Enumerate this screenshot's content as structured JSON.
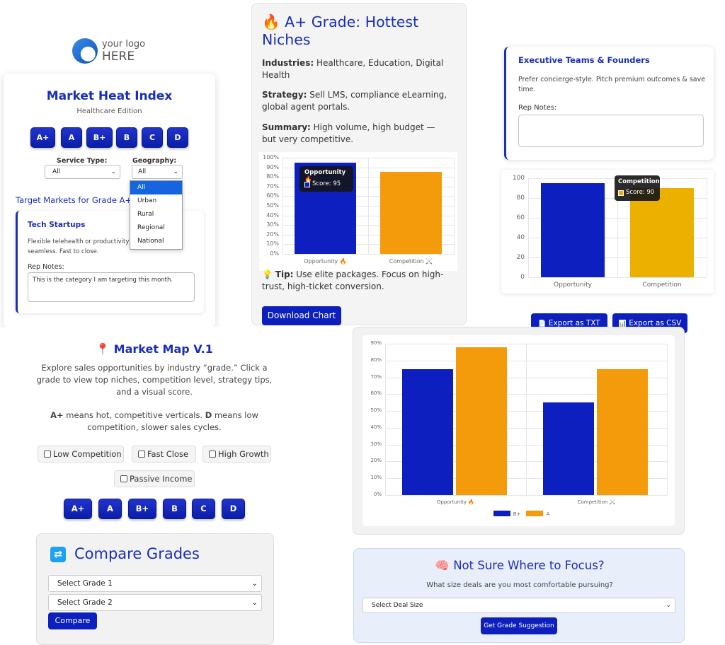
{
  "logo": {
    "line1": "your logo",
    "line2": "HERE"
  },
  "heat": {
    "title": "Market Heat Index",
    "subtitle": "Healthcare Edition",
    "grades": [
      "A+",
      "A",
      "B+",
      "B",
      "C",
      "D"
    ],
    "service_label": "Service Type:",
    "service_value": "All",
    "geo_label": "Geography:",
    "geo_value": "All",
    "geo_options": [
      "All",
      "Urban",
      "Rural",
      "Regional",
      "National"
    ],
    "target_heading": "Target Markets for Grade A+",
    "card_title": "Tech Startups",
    "card_desc": "Flexible telehealth or productivity tools. Low cost & seamless. Fast to close.",
    "rep_label": "Rep Notes:",
    "rep_value": "This is the category I am targeting this month."
  },
  "niche": {
    "icon": "🔥",
    "title": "A+ Grade: Hottest Niches",
    "industries_label": "Industries:",
    "industries_value": " Healthcare, Education, Digital Health",
    "strategy_label": "Strategy:",
    "strategy_value": " Sell LMS, compliance eLearning, global agent portals.",
    "summary_label": "Summary:",
    "summary_value": " High volume, high budget — but very competitive.",
    "tip_icon": "💡",
    "tip_label": "Tip:",
    "tip_value": " Use elite packages. Focus on high-trust, high-ticket conversion.",
    "download_label": "Download Chart",
    "tooltip_title": "Opportunity 🔥",
    "tooltip_value": "Score: 95"
  },
  "exec": {
    "title": "Executive Teams & Founders",
    "desc": "Prefer concierge-style. Pitch premium outcomes & save time.",
    "rep_label": "Rep Notes:",
    "rep_value": "",
    "tooltip_title": "Competition",
    "tooltip_value": "Score: 90",
    "export_txt": "Export as TXT",
    "export_csv": "Export as CSV",
    "export_txt_icon": "📄",
    "export_csv_icon": "📊"
  },
  "map": {
    "pin_icon": "📍",
    "title": "Market Map V.1",
    "desc": "Explore sales opportunities by industry “grade.” Click a grade to view top niches, competition level, strategy tips, and a visual score.",
    "legend_aplus": "A+",
    "legend_aplus_text": " means hot, competitive verticals. ",
    "legend_d": "D",
    "legend_d_text": " means low competition, slower sales cycles.",
    "filters": [
      "Low Competition",
      "Fast Close",
      "High Growth",
      "Passive Income"
    ],
    "grades": [
      "A+",
      "A",
      "B+",
      "B",
      "C",
      "D"
    ]
  },
  "compare": {
    "icon": "🔁",
    "title": "Compare Grades",
    "select1": "Select Grade 1",
    "select2": "Select Grade 2",
    "button": "Compare"
  },
  "focus": {
    "icon": "🧠",
    "title": "Not Sure Where to Focus?",
    "question": "What size deals are you most comfortable pursuing?",
    "select": "Select Deal Size",
    "button": "Get Grade Suggestion"
  },
  "colors": {
    "navy": "#0d1fbf",
    "orange": "#f49b0b",
    "gold": "#ecb100",
    "title_blue": "#1a2fb8"
  },
  "chart_data": [
    {
      "type": "bar",
      "categories": [
        "Opportunity 🔥",
        "Competition ⚔️"
      ],
      "values": [
        95,
        85
      ],
      "colors": [
        "#0d1fbf",
        "#f49b0b"
      ],
      "ylim": [
        0,
        100
      ],
      "yticks": [
        "0%",
        "10%",
        "20%",
        "30%",
        "40%",
        "50%",
        "60%",
        "70%",
        "80%",
        "90%",
        "100%"
      ],
      "grid": true
    },
    {
      "type": "bar",
      "categories": [
        "Opportunity",
        "Competition"
      ],
      "values": [
        95,
        90
      ],
      "colors": [
        "#0d1fbf",
        "#ecb100"
      ],
      "ylim": [
        0,
        100
      ],
      "yticks": [
        "0",
        "20",
        "40",
        "60",
        "80",
        "100"
      ],
      "grid": true
    },
    {
      "type": "bar",
      "categories": [
        "Opportunity 🔥",
        "Competition ⚔️"
      ],
      "series": [
        {
          "name": "B+",
          "values": [
            75,
            55
          ],
          "color": "#0d1fbf"
        },
        {
          "name": "A",
          "values": [
            88,
            75
          ],
          "color": "#f49b0b"
        }
      ],
      "ylim": [
        0,
        90
      ],
      "yticks": [
        "0%",
        "10%",
        "20%",
        "30%",
        "40%",
        "50%",
        "60%",
        "70%",
        "80%",
        "90%"
      ],
      "legend": "bottom",
      "grid": true
    }
  ]
}
